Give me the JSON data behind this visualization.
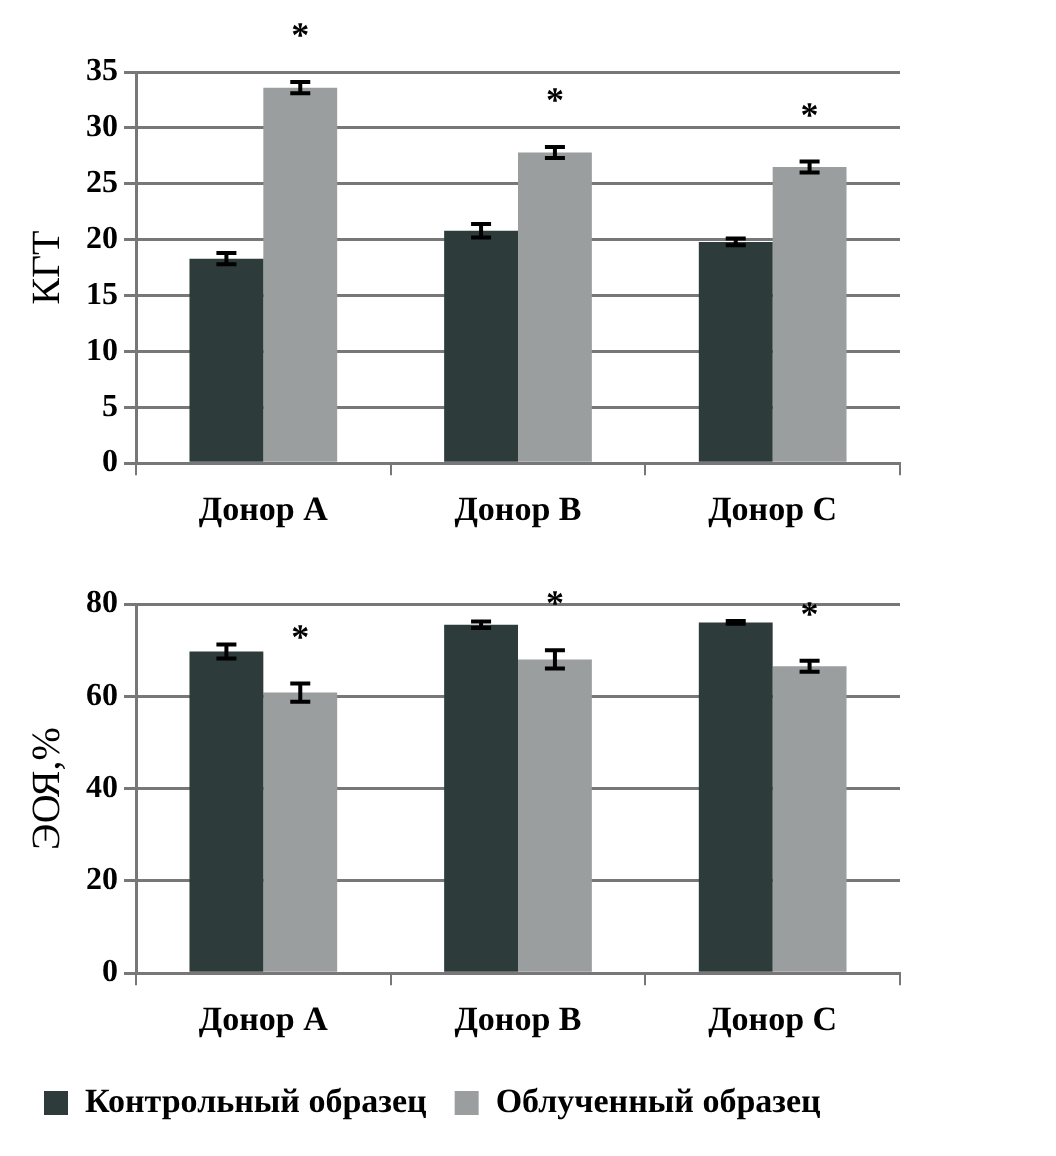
{
  "chart_data": [
    {
      "type": "bar",
      "ylabel": "КГТ",
      "categories": [
        "Донор A",
        "Донор B",
        "Донор C"
      ],
      "series": [
        {
          "color": "#2d3b3b",
          "values": [
            18.3,
            20.8,
            19.8
          ],
          "errors": [
            0.5,
            0.6,
            0.3
          ]
        },
        {
          "color": "#9a9e9e",
          "values": [
            33.6,
            27.8,
            26.5
          ],
          "errors": [
            0.5,
            0.5,
            0.5
          ]
        }
      ],
      "ylim": [
        0,
        35
      ],
      "yticks": [
        0,
        5,
        10,
        15,
        20,
        25,
        30,
        35
      ],
      "grid": "y",
      "legend": false,
      "annotations": [
        "*",
        "*",
        "*"
      ]
    },
    {
      "type": "bar",
      "ylabel": "ЭОЯ,%",
      "categories": [
        "Донор A",
        "Донор B",
        "Донор C"
      ],
      "series": [
        {
          "name": "Контрольный образец",
          "color": "#2d3b3b",
          "values": [
            69.7,
            75.5,
            76
          ],
          "errors": [
            1.5,
            0.7,
            0.3
          ]
        },
        {
          "name": "Облученный образец",
          "color": "#9a9e9e",
          "values": [
            60.8,
            68,
            66.5
          ],
          "errors": [
            2,
            2,
            1.2
          ]
        }
      ],
      "ylim": [
        0,
        80
      ],
      "yticks": [
        0,
        20,
        40,
        60,
        80
      ],
      "grid": "y",
      "legend": "bottom",
      "annotations": [
        "*",
        "*",
        "*"
      ]
    }
  ]
}
